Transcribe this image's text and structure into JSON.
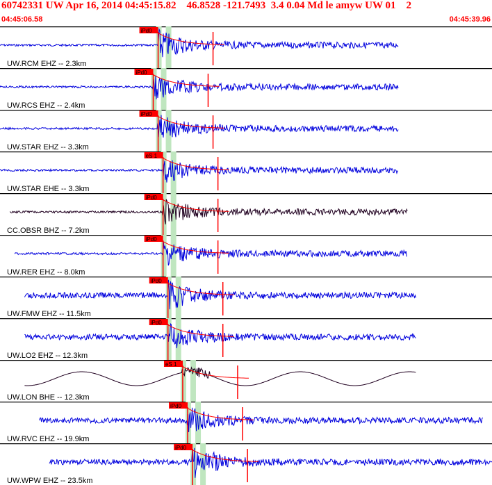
{
  "header": {
    "title": "60742331 UW Apr 16, 2014 04:45:15.82    46.8528 -121.7493  3.4 0.04 Md le amyw UW 01    2",
    "start_time": "04:45:06.58",
    "end_time": "04:45:39.96"
  },
  "colors": {
    "header_text": "#ff0000",
    "trace_blue": "#0000dd",
    "trace_black": "#000000",
    "pick_red": "#ff0000",
    "window_green": "#bfe6bf",
    "divider": "#000000"
  },
  "traces": [
    {
      "label": "UW.RCM EHZ -- 2.3km",
      "pick": "iPd0",
      "color": "blue",
      "start": 0.0,
      "end": 0.9,
      "onset": 0.32,
      "amp": 0.7
    },
    {
      "label": "UW.RCS EHZ -- 2.4km",
      "pick": "iPd0",
      "color": "blue",
      "start": 0.0,
      "end": 0.9,
      "onset": 0.31,
      "amp": 0.6
    },
    {
      "label": "UW.STAR EHZ -- 3.3km",
      "pick": "iPd0",
      "color": "blue",
      "start": 0.0,
      "end": 0.9,
      "onset": 0.32,
      "amp": 0.6
    },
    {
      "label": "UW.STAR EHE -- 3.3km",
      "pick": "eS 1",
      "color": "blue",
      "start": 0.0,
      "end": 0.9,
      "onset": 0.33,
      "amp": 0.55
    },
    {
      "label": "CC.OBSR BHZ -- 7.2km",
      "pick": "iPd0",
      "color": "black",
      "start": 0.02,
      "end": 0.92,
      "onset": 0.33,
      "amp": 0.6
    },
    {
      "label": "UW.RER EHZ -- 8.0km",
      "pick": "iPd0",
      "color": "blue",
      "start": 0.03,
      "end": 0.92,
      "onset": 0.33,
      "amp": 0.6
    },
    {
      "label": "UW.FMW EHZ -- 11.5km",
      "pick": "iPd0",
      "color": "blue",
      "start": 0.05,
      "end": 0.94,
      "onset": 0.34,
      "amp": 0.7
    },
    {
      "label": "UW.LO2 EHZ -- 12.3km",
      "pick": "iPd0",
      "color": "blue",
      "start": 0.05,
      "end": 0.94,
      "onset": 0.34,
      "amp": 0.6
    },
    {
      "label": "UW.LON BHE -- 12.3km",
      "pick": "eS 1",
      "color": "black",
      "start": 0.05,
      "end": 0.94,
      "onset": 0.37,
      "amp": 0.4
    },
    {
      "label": "UW.RVC EHZ -- 19.9km",
      "pick": "iPd0",
      "color": "blue",
      "start": 0.08,
      "end": 0.98,
      "onset": 0.38,
      "amp": 0.6
    },
    {
      "label": "UW.WPW EHZ -- 23.5km",
      "pick": "iPd0",
      "color": "blue",
      "start": 0.1,
      "end": 1.0,
      "onset": 0.39,
      "amp": 0.8
    }
  ]
}
